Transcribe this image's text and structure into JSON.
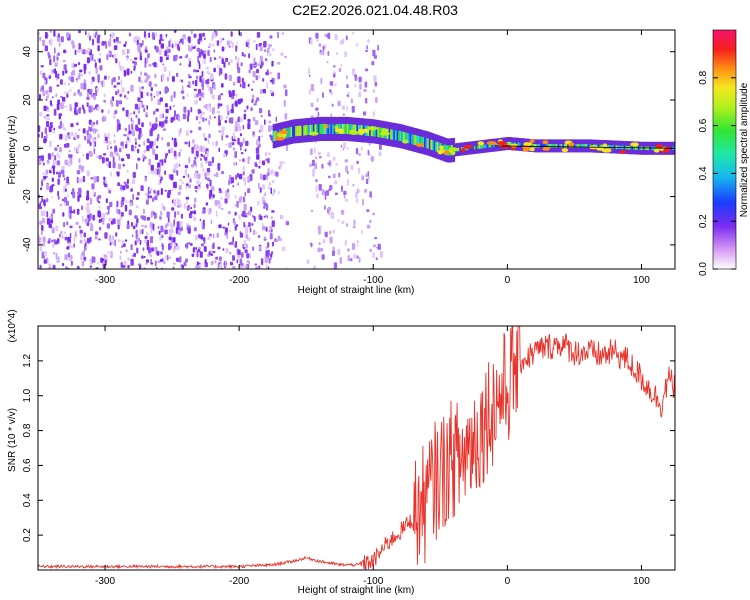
{
  "title": "C2E2.2026.021.04.48.R03",
  "colors": {
    "snr_line": "#e8332b",
    "density": "#7a2cf0",
    "axis": "#000000"
  },
  "chart_data": [
    {
      "type": "heatmap",
      "title": "C2E2.2026.021.04.48.R03",
      "xlabel": "Height of straight line (km)",
      "ylabel": "Frequency (Hz)",
      "xlim": [
        -350,
        125
      ],
      "ylim": [
        -50,
        49
      ],
      "xticks": [
        -300,
        -200,
        -100,
        0,
        100
      ],
      "yticks": [
        -40,
        -20,
        0,
        20,
        40
      ],
      "colorbar": {
        "label": "Normalized spectral amplitude",
        "range": [
          0,
          1
        ],
        "ticks": [
          0.0,
          0.2,
          0.4,
          0.6,
          0.8
        ]
      },
      "signal_ridge": {
        "x": [
          -175,
          -160,
          -140,
          -120,
          -100,
          -80,
          -60,
          -45,
          -30,
          -15,
          0,
          20,
          60,
          100,
          125
        ],
        "freq": [
          5,
          7,
          8,
          8,
          7,
          5,
          2,
          -1,
          0,
          1,
          2,
          1,
          1,
          0,
          0
        ]
      },
      "noise_region_x": [
        -350,
        -100
      ],
      "gap_x": [
        -165,
        -150
      ]
    },
    {
      "type": "line",
      "xlabel": "Height of straight line (km)",
      "ylabel": "SNR (10 * v/v)",
      "y_multiplier": "(x10^4)",
      "xlim": [
        -350,
        125
      ],
      "ylim": [
        0,
        1.4
      ],
      "xticks": [
        -300,
        -200,
        -100,
        0,
        100
      ],
      "yticks": [
        0.2,
        0.4,
        0.6,
        0.8,
        1.0,
        1.2
      ],
      "series": [
        {
          "name": "SNR",
          "x": [
            -350,
            -300,
            -250,
            -200,
            -175,
            -160,
            -150,
            -140,
            -125,
            -110,
            -100,
            -90,
            -80,
            -70,
            -60,
            -55,
            -50,
            -45,
            -40,
            -35,
            -30,
            -25,
            -20,
            -15,
            -10,
            -5,
            0,
            5,
            10,
            15,
            20,
            25,
            30,
            40,
            50,
            60,
            70,
            80,
            90,
            95,
            100,
            105,
            110,
            115,
            120,
            125
          ],
          "y": [
            0.02,
            0.02,
            0.02,
            0.02,
            0.03,
            0.05,
            0.07,
            0.05,
            0.03,
            0.03,
            0.05,
            0.15,
            0.22,
            0.3,
            0.4,
            0.5,
            0.55,
            0.6,
            0.65,
            0.62,
            0.7,
            0.75,
            0.8,
            0.9,
            0.95,
            1.0,
            1.05,
            1.15,
            1.2,
            1.22,
            1.25,
            1.27,
            1.28,
            1.3,
            1.25,
            1.25,
            1.23,
            1.25,
            1.2,
            1.15,
            1.1,
            1.05,
            1.0,
            0.95,
            1.1,
            1.05
          ]
        }
      ]
    }
  ]
}
